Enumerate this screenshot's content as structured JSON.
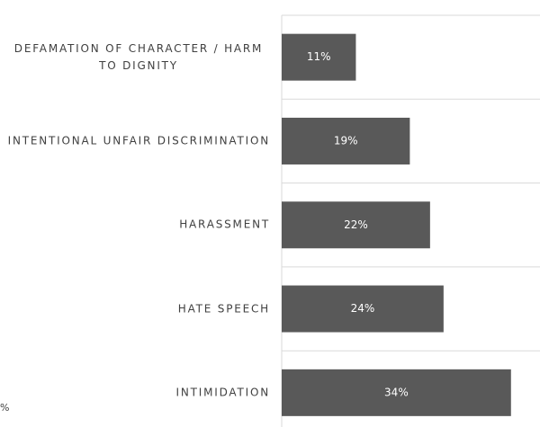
{
  "chart_data": {
    "type": "barh",
    "categories": [
      "DEFAMATION OF CHARACTER / HARM TO DIGNITY",
      "INTENTIONAL UNFAIR DISCRIMINATION",
      "HARASSMENT",
      "HATE SPEECH",
      "INTIMIDATION"
    ],
    "values": [
      11,
      19,
      22,
      24,
      34
    ],
    "value_labels": [
      "11%",
      "19%",
      "22%",
      "24%",
      "34%"
    ],
    "color": "#595959",
    "xlim": [
      0,
      38.3
    ],
    "annotation": "%"
  }
}
